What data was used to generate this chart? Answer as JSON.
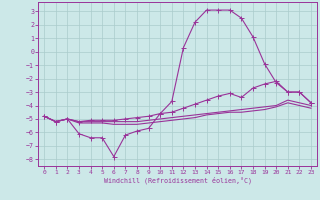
{
  "background_color": "#cce8e8",
  "grid_color": "#aacccc",
  "line_color": "#993399",
  "x": [
    0,
    1,
    2,
    3,
    4,
    5,
    6,
    7,
    8,
    9,
    10,
    11,
    12,
    13,
    14,
    15,
    16,
    17,
    18,
    19,
    20,
    21,
    22,
    23
  ],
  "curve_main": [
    -4.8,
    -5.2,
    -5.0,
    -6.1,
    -6.4,
    -6.4,
    -7.8,
    -6.2,
    -5.9,
    -5.7,
    -4.6,
    -3.7,
    0.3,
    2.2,
    3.1,
    3.1,
    3.1,
    2.5,
    1.1,
    -0.9,
    -2.3,
    -3.0,
    -3.0,
    -3.8
  ],
  "curve_mid": [
    -4.8,
    -5.2,
    -5.0,
    -5.2,
    -5.1,
    -5.1,
    -5.1,
    -5.0,
    -4.9,
    -4.8,
    -4.6,
    -4.5,
    -4.2,
    -3.9,
    -3.6,
    -3.3,
    -3.1,
    -3.4,
    -2.7,
    -2.4,
    -2.2,
    -3.0,
    -3.0,
    -3.8
  ],
  "curve_low": [
    -4.8,
    -5.2,
    -5.0,
    -5.3,
    -5.3,
    -5.3,
    -5.4,
    -5.4,
    -5.4,
    -5.3,
    -5.2,
    -5.1,
    -5.0,
    -4.9,
    -4.7,
    -4.6,
    -4.5,
    -4.5,
    -4.4,
    -4.3,
    -4.1,
    -3.8,
    -4.0,
    -4.2
  ],
  "curve_bot": [
    -4.8,
    -5.2,
    -5.0,
    -5.2,
    -5.2,
    -5.2,
    -5.2,
    -5.2,
    -5.2,
    -5.1,
    -5.0,
    -4.9,
    -4.8,
    -4.7,
    -4.6,
    -4.5,
    -4.4,
    -4.3,
    -4.2,
    -4.1,
    -4.0,
    -3.6,
    -3.8,
    -4.0
  ],
  "ylim": [
    -8.5,
    3.7
  ],
  "xlim": [
    -0.5,
    23.5
  ],
  "yticks": [
    -8,
    -7,
    -6,
    -5,
    -4,
    -3,
    -2,
    -1,
    0,
    1,
    2,
    3
  ],
  "xticks": [
    0,
    1,
    2,
    3,
    4,
    5,
    6,
    7,
    8,
    9,
    10,
    11,
    12,
    13,
    14,
    15,
    16,
    17,
    18,
    19,
    20,
    21,
    22,
    23
  ],
  "xlabel": "Windchill (Refroidissement éolien,°C)",
  "markersize": 2.0,
  "linewidth": 0.8
}
